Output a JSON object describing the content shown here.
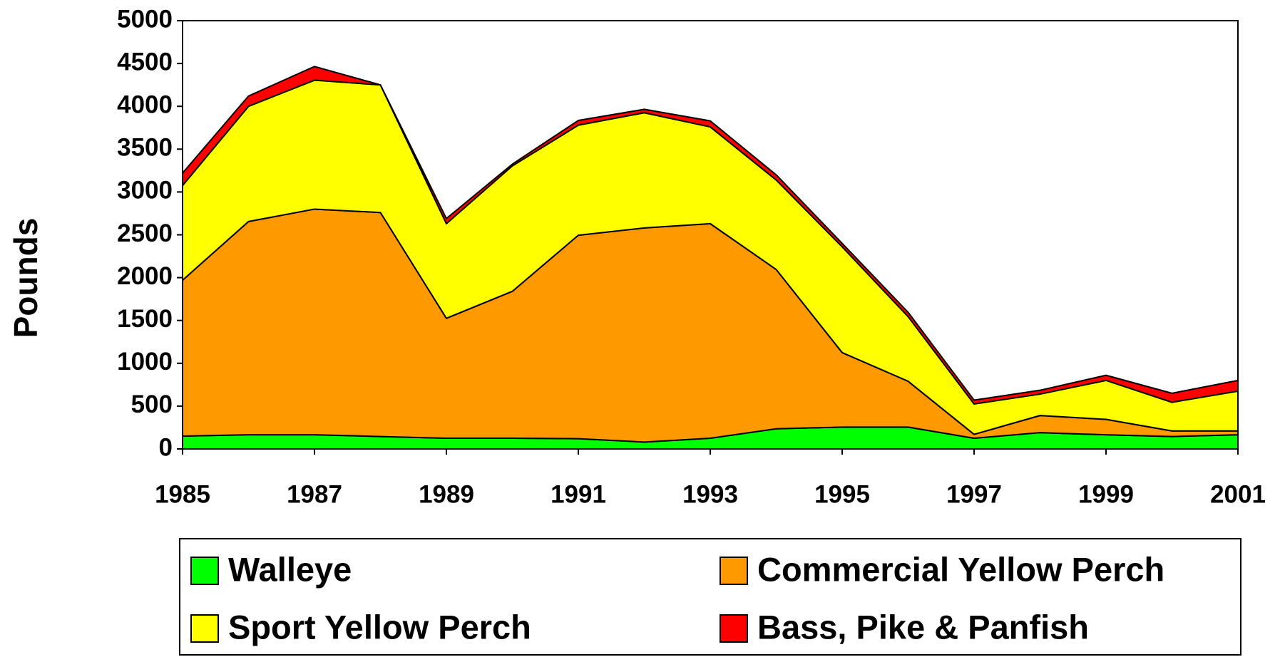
{
  "chart_data": {
    "type": "stacked_area",
    "y_label": "Pounds",
    "x": [
      1985,
      1986,
      1987,
      1988,
      1989,
      1990,
      1991,
      1992,
      1993,
      1994,
      1995,
      1996,
      1997,
      1998,
      1999,
      2000,
      2001
    ],
    "xlim": [
      1985,
      2001
    ],
    "xticks": [
      1985,
      1987,
      1989,
      1991,
      1993,
      1995,
      1997,
      1999,
      2001
    ],
    "ylim": [
      0,
      5000
    ],
    "yticks": [
      0,
      500,
      1000,
      1500,
      2000,
      2500,
      3000,
      3500,
      4000,
      4500,
      5000
    ],
    "grid": false,
    "legend": "bottom",
    "series": [
      {
        "name": "Walleye",
        "color": "#00ff00",
        "values": [
          150,
          165,
          165,
          145,
          125,
          125,
          120,
          80,
          125,
          235,
          255,
          255,
          125,
          190,
          165,
          145,
          165
        ]
      },
      {
        "name": "Commercial Yellow Perch",
        "color": "#ff9900",
        "values": [
          1820,
          2490,
          2635,
          2615,
          1400,
          1715,
          2375,
          2500,
          2505,
          1860,
          870,
          535,
          45,
          200,
          180,
          65,
          45
        ]
      },
      {
        "name": "Sport Yellow Perch",
        "color": "#ffff00",
        "values": [
          1105,
          1345,
          1505,
          1490,
          1105,
          1465,
          1285,
          1345,
          1130,
          1045,
          1235,
          755,
          355,
          250,
          455,
          335,
          465
        ]
      },
      {
        "name": "Bass, Pike & Panfish",
        "color": "#ff0000",
        "values": [
          145,
          120,
          160,
          0,
          60,
          20,
          55,
          40,
          70,
          60,
          40,
          50,
          45,
          45,
          60,
          105,
          125
        ]
      }
    ]
  }
}
